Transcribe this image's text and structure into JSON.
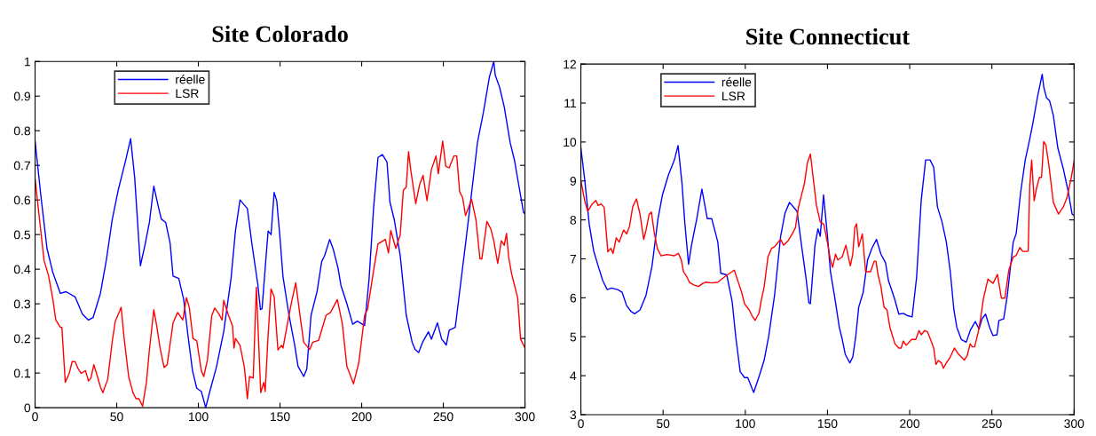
{
  "chart_data": [
    {
      "type": "line",
      "title": "Site Colorado",
      "legend": "top left",
      "xlim": [
        0,
        300
      ],
      "xticks": [
        0,
        50,
        100,
        150,
        200,
        250,
        300
      ],
      "ylim": [
        0,
        1
      ],
      "yticks": [
        0,
        0.1,
        0.2,
        0.3,
        0.4,
        0.5,
        0.6,
        0.7,
        0.8,
        0.9,
        1
      ],
      "series": [
        {
          "name": "réelle",
          "color": "#0000ff",
          "x": [
            0,
            3.6,
            7.3,
            10.9,
            15.5,
            19,
            24.5,
            29,
            32.7,
            35.5,
            40,
            43.6,
            47.3,
            51,
            55.5,
            58.5,
            61,
            64.5,
            67.3,
            70,
            72.7,
            75.5,
            77.3,
            80,
            82.7,
            84.5,
            88,
            91,
            93.6,
            96.4,
            99,
            101.8,
            104.5,
            107,
            111,
            115.5,
            120,
            122.7,
            125.5,
            130,
            132.7,
            136.4,
            138,
            139,
            141,
            142.7,
            144.5,
            146.4,
            148,
            150,
            151.8,
            155.5,
            159,
            161,
            164.5,
            166.4,
            169,
            172.7,
            175.5,
            177.3,
            180.4,
            182.7,
            185.5,
            187.3,
            190.9,
            194.5,
            197.3,
            201.8,
            204.5,
            207.3,
            210,
            212.7,
            215.5,
            217.3,
            220,
            223.6,
            227.3,
            230.9,
            232.7,
            234.9,
            237.3,
            240.9,
            242.7,
            246.4,
            249,
            251.8,
            253.6,
            257.3,
            260.9,
            263.6,
            267.3,
            270.9,
            274.5,
            278.2,
            280.9,
            281.8,
            284.5,
            287.3,
            290.9,
            293.6,
            296.4,
            299.1,
            300
          ],
          "values": [
            0.77,
            0.61,
            0.46,
            0.39,
            0.33,
            0.335,
            0.32,
            0.27,
            0.253,
            0.26,
            0.33,
            0.425,
            0.545,
            0.63,
            0.715,
            0.777,
            0.665,
            0.41,
            0.47,
            0.535,
            0.64,
            0.58,
            0.545,
            0.535,
            0.475,
            0.38,
            0.373,
            0.313,
            0.21,
            0.107,
            0.056,
            0.047,
            0.0,
            0.047,
            0.116,
            0.219,
            0.373,
            0.51,
            0.6,
            0.575,
            0.476,
            0.356,
            0.283,
            0.286,
            0.408,
            0.51,
            0.5,
            0.622,
            0.597,
            0.49,
            0.379,
            0.267,
            0.18,
            0.12,
            0.09,
            0.112,
            0.267,
            0.336,
            0.422,
            0.439,
            0.486,
            0.456,
            0.404,
            0.353,
            0.301,
            0.241,
            0.25,
            0.237,
            0.37,
            0.577,
            0.723,
            0.731,
            0.71,
            0.594,
            0.542,
            0.439,
            0.267,
            0.189,
            0.168,
            0.159,
            0.189,
            0.219,
            0.198,
            0.245,
            0.198,
            0.181,
            0.224,
            0.232,
            0.37,
            0.473,
            0.62,
            0.766,
            0.852,
            0.955,
            1.0,
            0.96,
            0.925,
            0.869,
            0.766,
            0.714,
            0.637,
            0.564,
            0.56
          ]
        },
        {
          "name": "LSR",
          "color": "#ff0000",
          "x": [
            0,
            2.7,
            5.5,
            8.2,
            10.9,
            12.7,
            15.5,
            16.4,
            18.5,
            20.9,
            22.7,
            24.5,
            26.4,
            28.2,
            30.9,
            32.7,
            34.2,
            36,
            38.2,
            40,
            41.5,
            44.5,
            47.3,
            49.1,
            51.8,
            52.7,
            54.5,
            57.3,
            60,
            61.8,
            63.6,
            65.8,
            68.2,
            70,
            72.7,
            74.5,
            76.4,
            79,
            80.9,
            84.5,
            87.3,
            90.5,
            92.7,
            94.5,
            96.7,
            99,
            101.8,
            103.3,
            105.5,
            108.2,
            110,
            112.7,
            114.5,
            115.5,
            118.2,
            120.9,
            121.8,
            122.7,
            125.5,
            128.2,
            130,
            131.3,
            133.6,
            135.5,
            138.2,
            140,
            140.9,
            142.7,
            144.5,
            146.4,
            148.7,
            150.9,
            151.8,
            155.5,
            157.3,
            159.6,
            162.7,
            164.5,
            168.2,
            170,
            173.6,
            178.2,
            180.9,
            185.1,
            188.2,
            190.9,
            195,
            198.2,
            201.8,
            203.6,
            207.3,
            210,
            214.5,
            216.4,
            217.8,
            220.9,
            223.6,
            225.5,
            227.3,
            228.7,
            230,
            233.1,
            235.5,
            237.6,
            240,
            242.7,
            245.5,
            246.9,
            249.6,
            251.5,
            253.6,
            256.4,
            258.2,
            260,
            261.8,
            263.6,
            267.3,
            270,
            272.4,
            273.6,
            276.7,
            279.1,
            280.9,
            283.3,
            285.5,
            287.3,
            288.7,
            290,
            291.8,
            295.5,
            297.3,
            300
          ],
          "values": [
            0.661,
            0.545,
            0.425,
            0.382,
            0.313,
            0.253,
            0.232,
            0.232,
            0.073,
            0.099,
            0.133,
            0.133,
            0.112,
            0.099,
            0.107,
            0.077,
            0.086,
            0.124,
            0.09,
            0.06,
            0.043,
            0.082,
            0.193,
            0.249,
            0.279,
            0.29,
            0.202,
            0.09,
            0.043,
            0.026,
            0.026,
            0.004,
            0.073,
            0.167,
            0.283,
            0.236,
            0.176,
            0.116,
            0.124,
            0.245,
            0.275,
            0.253,
            0.318,
            0.288,
            0.2,
            0.193,
            0.107,
            0.09,
            0.137,
            0.266,
            0.288,
            0.27,
            0.253,
            0.31,
            0.27,
            0.236,
            0.172,
            0.2,
            0.18,
            0.116,
            0.026,
            0.09,
            0.086,
            0.348,
            0.043,
            0.073,
            0.047,
            0.21,
            0.343,
            0.32,
            0.167,
            0.18,
            0.172,
            0.267,
            0.31,
            0.361,
            0.25,
            0.189,
            0.168,
            0.189,
            0.194,
            0.267,
            0.275,
            0.312,
            0.241,
            0.12,
            0.069,
            0.129,
            0.267,
            0.284,
            0.396,
            0.473,
            0.486,
            0.447,
            0.512,
            0.46,
            0.499,
            0.628,
            0.637,
            0.74,
            0.688,
            0.589,
            0.645,
            0.671,
            0.598,
            0.688,
            0.727,
            0.676,
            0.77,
            0.697,
            0.693,
            0.727,
            0.727,
            0.624,
            0.607,
            0.555,
            0.602,
            0.542,
            0.43,
            0.43,
            0.538,
            0.516,
            0.482,
            0.417,
            0.482,
            0.469,
            0.503,
            0.435,
            0.387,
            0.318,
            0.198,
            0.172
          ]
        }
      ]
    },
    {
      "type": "line",
      "title": "Site Connecticut",
      "legend": "top left",
      "xlim": [
        0,
        300
      ],
      "xticks": [
        0,
        50,
        100,
        150,
        200,
        250,
        300
      ],
      "ylim": [
        3,
        12
      ],
      "yticks": [
        3,
        4,
        5,
        6,
        7,
        8,
        9,
        10,
        11,
        12
      ],
      "series": [
        {
          "name": "réelle",
          "color": "#0000ff",
          "x": [
            0,
            2.4,
            5.1,
            7.8,
            10.5,
            13.3,
            16,
            18.7,
            22.4,
            25.1,
            27.8,
            30.5,
            32.7,
            36,
            39.6,
            43.3,
            46.9,
            49.6,
            53.3,
            56.9,
            59.1,
            61.5,
            63.3,
            65.5,
            67.3,
            70.5,
            73.6,
            76.9,
            79.6,
            83.3,
            85.1,
            88.7,
            92,
            94.2,
            96.9,
            99.6,
            101.5,
            105.1,
            108.7,
            111.5,
            114.2,
            117.8,
            121.5,
            124.2,
            126.9,
            131.5,
            134.2,
            136.9,
            138.7,
            139.6,
            142.4,
            144.2,
            145.6,
            147.6,
            150,
            151.8,
            154.5,
            157.2,
            159,
            160.8,
            163.6,
            165.4,
            167.2,
            169,
            171.7,
            174.4,
            177.1,
            179.8,
            182.5,
            185.3,
            187.1,
            190.7,
            193.4,
            196.1,
            198.8,
            201.5,
            204.2,
            207,
            209.7,
            212.4,
            214.6,
            216.9,
            219.6,
            222.3,
            224.7,
            226.9,
            228.7,
            231.4,
            234.4,
            236.8,
            239.9,
            242.2,
            244,
            246.2,
            248.6,
            250.7,
            253.1,
            254.3,
            257.2,
            259.4,
            263,
            264.8,
            267.5,
            270.3,
            273,
            274.8,
            277.8,
            280.6,
            281.6,
            283.3,
            285.1,
            287.4,
            290.1,
            293.4,
            296.5,
            298.8,
            300
          ],
          "values": [
            9.85,
            9.01,
            7.88,
            7.2,
            6.82,
            6.44,
            6.21,
            6.25,
            6.21,
            6.14,
            5.8,
            5.65,
            5.59,
            5.69,
            6.06,
            6.82,
            8.03,
            8.64,
            9.16,
            9.54,
            9.91,
            8.94,
            7.88,
            6.86,
            7.35,
            8.03,
            8.79,
            8.03,
            8.03,
            7.43,
            6.63,
            6.59,
            5.91,
            5.0,
            4.1,
            3.95,
            3.95,
            3.57,
            4.02,
            4.4,
            5.0,
            6.06,
            7.58,
            8.18,
            8.45,
            8.22,
            7.35,
            6.52,
            5.87,
            5.85,
            7.35,
            7.77,
            7.58,
            8.64,
            7.58,
            6.67,
            5.99,
            5.24,
            4.93,
            4.55,
            4.33,
            4.48,
            5.01,
            5.76,
            6.14,
            6.97,
            7.28,
            7.5,
            7.12,
            6.9,
            6.44,
            5.99,
            5.58,
            5.6,
            5.54,
            5.51,
            6.52,
            8.49,
            9.54,
            9.54,
            9.35,
            8.33,
            7.96,
            7.43,
            6.67,
            5.69,
            5.24,
            4.93,
            4.86,
            5.16,
            5.39,
            5.2,
            5.46,
            5.58,
            5.24,
            5.03,
            5.05,
            5.42,
            5.46,
            6.07,
            7.43,
            7.65,
            8.71,
            9.54,
            10.07,
            10.45,
            11.17,
            11.74,
            11.4,
            11.13,
            11.06,
            10.68,
            9.85,
            9.32,
            8.71,
            8.15,
            8.12
          ]
        },
        {
          "name": "LSR",
          "color": "#ff0000",
          "x": [
            0,
            2.4,
            4.2,
            6.9,
            9.1,
            10.5,
            12.4,
            14.2,
            16.4,
            18.2,
            19.6,
            21.5,
            23.3,
            26,
            27.8,
            29.6,
            31.5,
            33.8,
            36,
            38.2,
            39.6,
            41.5,
            42.9,
            44.7,
            46.5,
            48.7,
            52.4,
            56.9,
            59.3,
            61.1,
            62.4,
            64.2,
            66,
            68.7,
            71.5,
            74.2,
            76,
            79.6,
            83.3,
            86.9,
            90.5,
            93.3,
            96,
            97.8,
            99.6,
            102.4,
            104.2,
            106,
            108.4,
            109.6,
            111.5,
            113.8,
            116,
            117.8,
            121.5,
            123.3,
            126,
            128.7,
            130.5,
            132.4,
            134.2,
            136,
            137.8,
            139.6,
            141.5,
            143.3,
            145.6,
            147.8,
            150,
            151.8,
            153.1,
            154.9,
            156.3,
            159,
            161.2,
            163.9,
            165.4,
            166.6,
            167.7,
            169,
            171.2,
            173.2,
            176.2,
            178.4,
            179.5,
            180.7,
            182.5,
            184.4,
            186.2,
            188,
            191,
            193.4,
            194.8,
            196.1,
            197.9,
            201.2,
            203.7,
            205.7,
            207,
            209.1,
            210.9,
            213.3,
            214.6,
            216,
            217.5,
            219.3,
            220.5,
            222.3,
            224.7,
            227.2,
            229.6,
            233.2,
            235,
            236.8,
            238.1,
            239.5,
            241.7,
            243.1,
            244.9,
            247.6,
            250.7,
            253.4,
            255.8,
            257.9,
            260.3,
            263,
            264.8,
            267,
            268.8,
            270.6,
            272.1,
            273,
            274.2,
            275.7,
            277.1,
            278.9,
            280.2,
            281.5,
            282.9,
            284.7,
            287.4,
            290.5,
            293.4,
            295.6,
            298.3,
            300
          ],
          "values": [
            9.01,
            8.48,
            8.22,
            8.41,
            8.5,
            8.37,
            8.41,
            8.32,
            7.18,
            7.27,
            7.14,
            7.54,
            7.43,
            7.74,
            7.64,
            7.84,
            8.33,
            8.54,
            8.14,
            7.5,
            7.73,
            8.14,
            8.2,
            7.65,
            7.27,
            7.08,
            7.11,
            7.08,
            7.14,
            6.97,
            6.67,
            6.56,
            6.4,
            6.33,
            6.29,
            6.37,
            6.4,
            6.38,
            6.4,
            6.52,
            6.63,
            6.71,
            6.37,
            6.14,
            5.84,
            5.69,
            5.53,
            5.42,
            5.61,
            5.91,
            6.29,
            7.05,
            7.27,
            7.31,
            7.5,
            7.35,
            7.46,
            7.65,
            7.8,
            8.33,
            8.64,
            8.94,
            9.47,
            9.69,
            9.01,
            8.37,
            7.95,
            7.88,
            7.41,
            6.97,
            6.78,
            7.12,
            6.97,
            7.05,
            7.35,
            6.82,
            7.12,
            7.8,
            7.9,
            7.31,
            7.64,
            6.67,
            6.67,
            6.94,
            6.94,
            6.6,
            6.29,
            5.76,
            5.69,
            5.24,
            4.82,
            4.71,
            4.71,
            4.89,
            4.78,
            4.93,
            4.93,
            5.16,
            5.05,
            5.16,
            5.12,
            4.86,
            4.71,
            4.29,
            4.39,
            4.33,
            4.19,
            4.33,
            4.48,
            4.71,
            4.56,
            4.4,
            4.52,
            4.82,
            4.74,
            4.74,
            5.12,
            5.46,
            5.99,
            6.48,
            6.37,
            6.6,
            5.99,
            5.99,
            6.71,
            7.05,
            7.09,
            7.29,
            7.19,
            7.19,
            7.2,
            8.86,
            9.54,
            8.49,
            8.8,
            9.09,
            9.09,
            10.01,
            9.92,
            9.39,
            8.45,
            8.15,
            8.33,
            8.56,
            9.09,
            9.5
          ]
        }
      ]
    }
  ]
}
